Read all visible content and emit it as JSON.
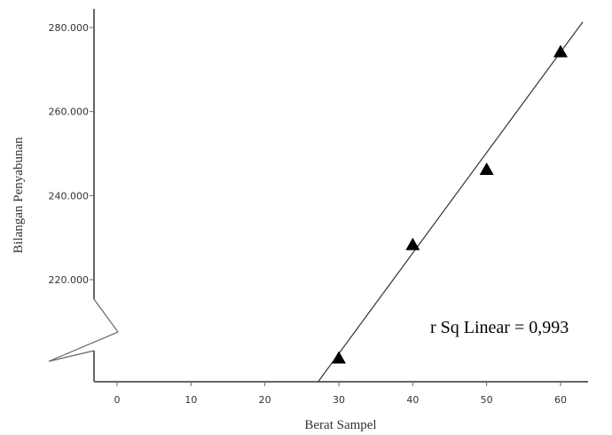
{
  "chart_data": {
    "type": "scatter",
    "title": "",
    "xlabel": "Berat Sampel",
    "ylabel": "Bilangan Penyabunan",
    "xlim": [
      -3,
      63
    ],
    "ylim": [
      196,
      283
    ],
    "x_ticks": [
      0,
      10,
      20,
      30,
      40,
      50,
      60
    ],
    "x_tick_labels": [
      "0",
      "10",
      "20",
      "30",
      "40",
      "50",
      "60"
    ],
    "y_ticks": [
      220,
      240,
      260,
      280
    ],
    "y_tick_labels": [
      "220.000",
      "240.000",
      "260.000",
      "280.000"
    ],
    "y_axis_break": true,
    "grid": false,
    "legend": "none",
    "series": [
      {
        "marker": "triangle",
        "x": [
          30,
          40,
          50,
          60
        ],
        "y": [
          201.3,
          228.3,
          246.2,
          274.2
        ]
      }
    ],
    "fit_line": {
      "type": "linear",
      "slope": 2.44,
      "intercept": 127.6
    },
    "annotation": "r Sq Linear = 0,993",
    "colors": {
      "marker": "#000000",
      "line": "#333333",
      "axis": "#666666"
    }
  }
}
